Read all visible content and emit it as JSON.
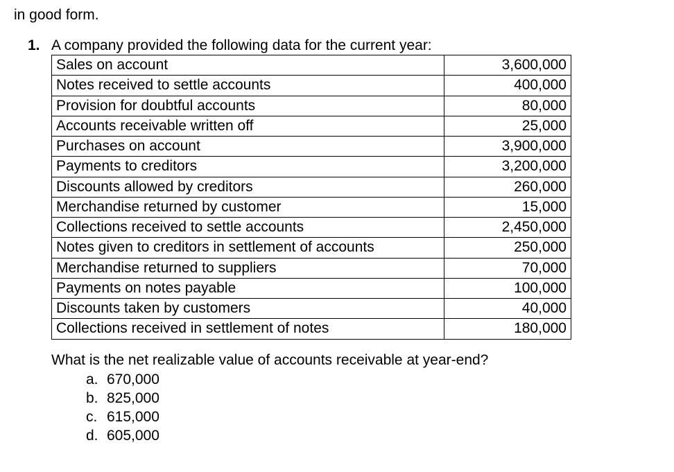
{
  "fragment_text": "in good form.",
  "question_number": "1.",
  "question_intro": "A company provided the following data for the current year:",
  "table": {
    "rows": [
      {
        "label": "Sales on account",
        "value": "3,600,000"
      },
      {
        "label": "Notes received to settle accounts",
        "value": "400,000"
      },
      {
        "label": "Provision for doubtful accounts",
        "value": "80,000"
      },
      {
        "label": "Accounts receivable written off",
        "value": "25,000"
      },
      {
        "label": "Purchases on account",
        "value": "3,900,000"
      },
      {
        "label": "Payments to creditors",
        "value": "3,200,000"
      },
      {
        "label": "Discounts allowed by creditors",
        "value": "260,000"
      },
      {
        "label": "Merchandise returned by customer",
        "value": "15,000"
      },
      {
        "label": "Collections received to settle accounts",
        "value": "2,450,000"
      },
      {
        "label": "Notes given to creditors in settlement of accounts",
        "value": "250,000"
      },
      {
        "label": "Merchandise returned to suppliers",
        "value": "70,000"
      },
      {
        "label": "Payments on notes payable",
        "value": "100,000"
      },
      {
        "label": "Discounts taken by customers",
        "value": "40,000"
      },
      {
        "label": "Collections received in settlement of notes",
        "value": "180,000"
      }
    ]
  },
  "sub_question": "What is the net realizable value of accounts receivable at year-end?",
  "options": [
    {
      "letter": "a.",
      "text": "670,000"
    },
    {
      "letter": "b.",
      "text": "825,000"
    },
    {
      "letter": "c.",
      "text": "615,000"
    },
    {
      "letter": "d.",
      "text": "605,000"
    }
  ]
}
